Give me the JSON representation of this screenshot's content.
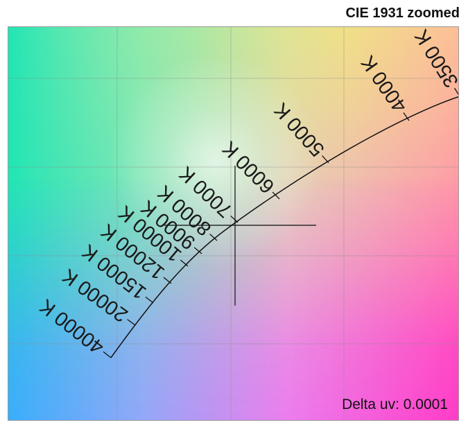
{
  "title": "CIE 1931 zoomed",
  "delta_uv_label": "Delta uv: 0.0001",
  "temperature_labels": [
    "40000 K",
    "20000 K",
    "15000 K",
    "12000 K",
    "10000 K",
    "9000 K",
    "8000 K",
    "7000 K",
    "6000 K",
    "5000 K",
    "4000 K",
    "3500 K"
  ],
  "colors": {
    "locus_line": "#111111",
    "grid_line": "#8c8c8c",
    "text": "#111111"
  }
}
